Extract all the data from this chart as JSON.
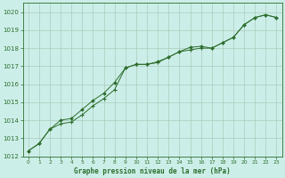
{
  "bg_color": "#cceee8",
  "grid_color": "#aaccbb",
  "line_color": "#2d6e2d",
  "xlabel": "Graphe pression niveau de la mer (hPa)",
  "xlim": [
    -0.5,
    23.5
  ],
  "ylim": [
    1012,
    1020.5
  ],
  "yticks": [
    1012,
    1013,
    1014,
    1015,
    1016,
    1017,
    1018,
    1019,
    1020
  ],
  "xticks": [
    0,
    1,
    2,
    3,
    4,
    5,
    6,
    7,
    8,
    9,
    10,
    11,
    12,
    13,
    14,
    15,
    16,
    17,
    18,
    19,
    20,
    21,
    22,
    23
  ],
  "series1_x": [
    0,
    1,
    2,
    3,
    4,
    5,
    6,
    7,
    8,
    9,
    10,
    11,
    12,
    13,
    14,
    15,
    16,
    17,
    18,
    19,
    20,
    21,
    22,
    23
  ],
  "series1_y": [
    1012.3,
    1012.7,
    1013.5,
    1013.8,
    1013.9,
    1014.3,
    1014.8,
    1015.2,
    1015.7,
    1016.9,
    1017.1,
    1017.1,
    1017.2,
    1017.5,
    1017.8,
    1017.9,
    1018.0,
    1018.0,
    1018.3,
    1018.6,
    1019.3,
    1019.7,
    1019.85,
    1019.7
  ],
  "series2_x": [
    0,
    1,
    2,
    3,
    4,
    5,
    6,
    7,
    8,
    9,
    10,
    11,
    12,
    13,
    14,
    15,
    16,
    17,
    18,
    19,
    20,
    21,
    22,
    23
  ],
  "series2_y": [
    1012.3,
    1012.7,
    1013.5,
    1014.0,
    1014.1,
    1014.6,
    1015.1,
    1015.5,
    1016.1,
    1016.9,
    1017.1,
    1017.1,
    1017.25,
    1017.5,
    1017.8,
    1018.05,
    1018.1,
    1018.0,
    1018.3,
    1018.6,
    1019.3,
    1019.7,
    1019.85,
    1019.7
  ]
}
